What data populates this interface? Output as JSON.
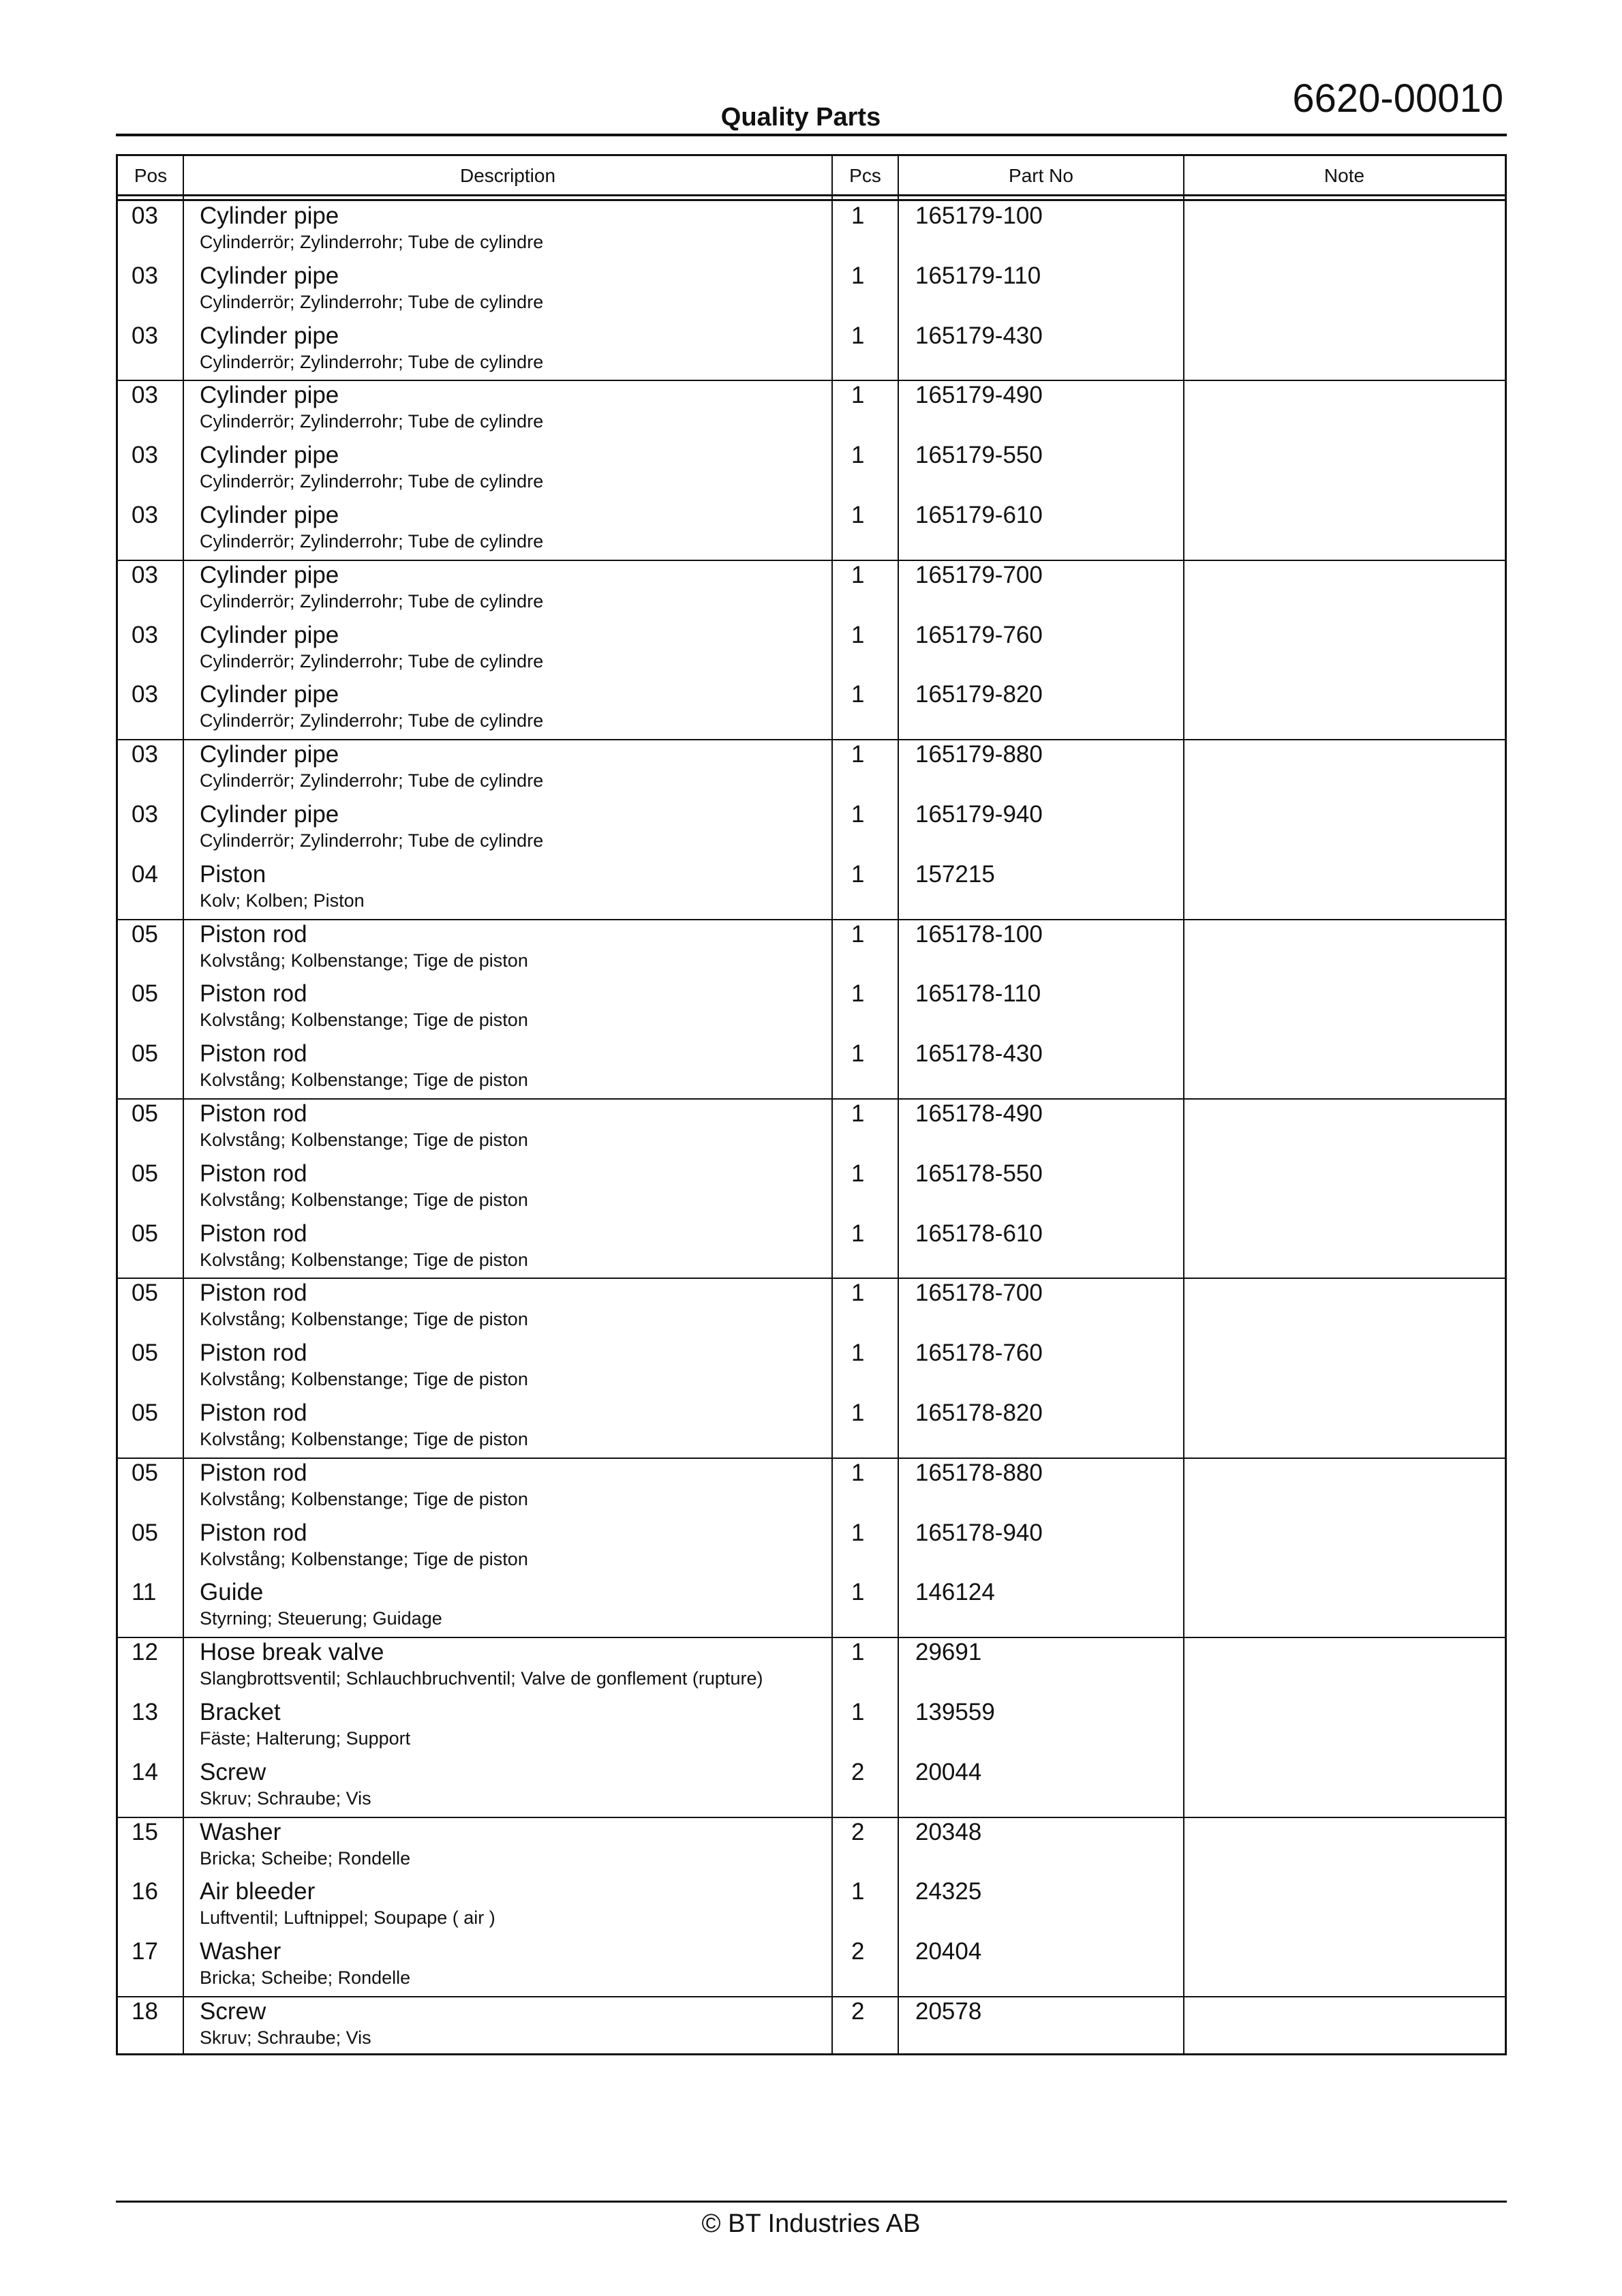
{
  "header": {
    "doc_number": "6620-00010",
    "title": "Quality Parts"
  },
  "table": {
    "columns": [
      "Pos",
      "Description",
      "Pcs",
      "Part No",
      "Note"
    ],
    "group_size": 3,
    "rows": [
      {
        "pos": "03",
        "name": "Cylinder pipe",
        "translations": "Cylinderrör; Zylinderrohr; Tube de cylindre",
        "pcs": "1",
        "part_no": "165179-100",
        "note": ""
      },
      {
        "pos": "03",
        "name": "Cylinder pipe",
        "translations": "Cylinderrör; Zylinderrohr; Tube de cylindre",
        "pcs": "1",
        "part_no": "165179-110",
        "note": ""
      },
      {
        "pos": "03",
        "name": "Cylinder pipe",
        "translations": "Cylinderrör; Zylinderrohr; Tube de cylindre",
        "pcs": "1",
        "part_no": "165179-430",
        "note": ""
      },
      {
        "pos": "03",
        "name": "Cylinder pipe",
        "translations": "Cylinderrör; Zylinderrohr; Tube de cylindre",
        "pcs": "1",
        "part_no": "165179-490",
        "note": ""
      },
      {
        "pos": "03",
        "name": "Cylinder pipe",
        "translations": "Cylinderrör; Zylinderrohr; Tube de cylindre",
        "pcs": "1",
        "part_no": "165179-550",
        "note": ""
      },
      {
        "pos": "03",
        "name": "Cylinder pipe",
        "translations": "Cylinderrör; Zylinderrohr; Tube de cylindre",
        "pcs": "1",
        "part_no": "165179-610",
        "note": ""
      },
      {
        "pos": "03",
        "name": "Cylinder pipe",
        "translations": "Cylinderrör; Zylinderrohr; Tube de cylindre",
        "pcs": "1",
        "part_no": "165179-700",
        "note": ""
      },
      {
        "pos": "03",
        "name": "Cylinder pipe",
        "translations": "Cylinderrör; Zylinderrohr; Tube de cylindre",
        "pcs": "1",
        "part_no": "165179-760",
        "note": ""
      },
      {
        "pos": "03",
        "name": "Cylinder pipe",
        "translations": "Cylinderrör; Zylinderrohr; Tube de cylindre",
        "pcs": "1",
        "part_no": "165179-820",
        "note": ""
      },
      {
        "pos": "03",
        "name": "Cylinder pipe",
        "translations": "Cylinderrör; Zylinderrohr; Tube de cylindre",
        "pcs": "1",
        "part_no": "165179-880",
        "note": ""
      },
      {
        "pos": "03",
        "name": "Cylinder pipe",
        "translations": "Cylinderrör; Zylinderrohr; Tube de cylindre",
        "pcs": "1",
        "part_no": "165179-940",
        "note": ""
      },
      {
        "pos": "04",
        "name": "Piston",
        "translations": "Kolv; Kolben; Piston",
        "pcs": "1",
        "part_no": "157215",
        "note": ""
      },
      {
        "pos": "05",
        "name": "Piston rod",
        "translations": "Kolvstång; Kolbenstange; Tige de piston",
        "pcs": "1",
        "part_no": "165178-100",
        "note": ""
      },
      {
        "pos": "05",
        "name": "Piston rod",
        "translations": "Kolvstång; Kolbenstange; Tige de piston",
        "pcs": "1",
        "part_no": "165178-110",
        "note": ""
      },
      {
        "pos": "05",
        "name": "Piston rod",
        "translations": "Kolvstång; Kolbenstange; Tige de piston",
        "pcs": "1",
        "part_no": "165178-430",
        "note": ""
      },
      {
        "pos": "05",
        "name": "Piston rod",
        "translations": "Kolvstång; Kolbenstange; Tige de piston",
        "pcs": "1",
        "part_no": "165178-490",
        "note": ""
      },
      {
        "pos": "05",
        "name": "Piston rod",
        "translations": "Kolvstång; Kolbenstange; Tige de piston",
        "pcs": "1",
        "part_no": "165178-550",
        "note": ""
      },
      {
        "pos": "05",
        "name": "Piston rod",
        "translations": "Kolvstång; Kolbenstange; Tige de piston",
        "pcs": "1",
        "part_no": "165178-610",
        "note": ""
      },
      {
        "pos": "05",
        "name": "Piston rod",
        "translations": "Kolvstång; Kolbenstange; Tige de piston",
        "pcs": "1",
        "part_no": "165178-700",
        "note": ""
      },
      {
        "pos": "05",
        "name": "Piston rod",
        "translations": "Kolvstång; Kolbenstange; Tige de piston",
        "pcs": "1",
        "part_no": "165178-760",
        "note": ""
      },
      {
        "pos": "05",
        "name": "Piston rod",
        "translations": "Kolvstång; Kolbenstange; Tige de piston",
        "pcs": "1",
        "part_no": "165178-820",
        "note": ""
      },
      {
        "pos": "05",
        "name": "Piston rod",
        "translations": "Kolvstång; Kolbenstange; Tige de piston",
        "pcs": "1",
        "part_no": "165178-880",
        "note": ""
      },
      {
        "pos": "05",
        "name": "Piston rod",
        "translations": "Kolvstång; Kolbenstange; Tige de piston",
        "pcs": "1",
        "part_no": "165178-940",
        "note": ""
      },
      {
        "pos": "11",
        "name": "Guide",
        "translations": "Styrning; Steuerung; Guidage",
        "pcs": "1",
        "part_no": "146124",
        "note": ""
      },
      {
        "pos": "12",
        "name": "Hose break valve",
        "translations": "Slangbrottsventil; Schlauchbruchventil; Valve de gonflement (rupture)",
        "pcs": "1",
        "part_no": "29691",
        "note": ""
      },
      {
        "pos": "13",
        "name": "Bracket",
        "translations": "Fäste; Halterung; Support",
        "pcs": "1",
        "part_no": "139559",
        "note": ""
      },
      {
        "pos": "14",
        "name": "Screw",
        "translations": "Skruv; Schraube; Vis",
        "pcs": "2",
        "part_no": "20044",
        "note": ""
      },
      {
        "pos": "15",
        "name": "Washer",
        "translations": "Bricka; Scheibe; Rondelle",
        "pcs": "2",
        "part_no": "20348",
        "note": ""
      },
      {
        "pos": "16",
        "name": "Air bleeder",
        "translations": "Luftventil; Luftnippel; Soupape ( air )",
        "pcs": "1",
        "part_no": "24325",
        "note": ""
      },
      {
        "pos": "17",
        "name": "Washer",
        "translations": "Bricka; Scheibe; Rondelle",
        "pcs": "2",
        "part_no": "20404",
        "note": ""
      },
      {
        "pos": "18",
        "name": "Screw",
        "translations": "Skruv; Schraube; Vis",
        "pcs": "2",
        "part_no": "20578",
        "note": ""
      }
    ]
  },
  "footer": {
    "copyright": "© BT Industries AB"
  }
}
